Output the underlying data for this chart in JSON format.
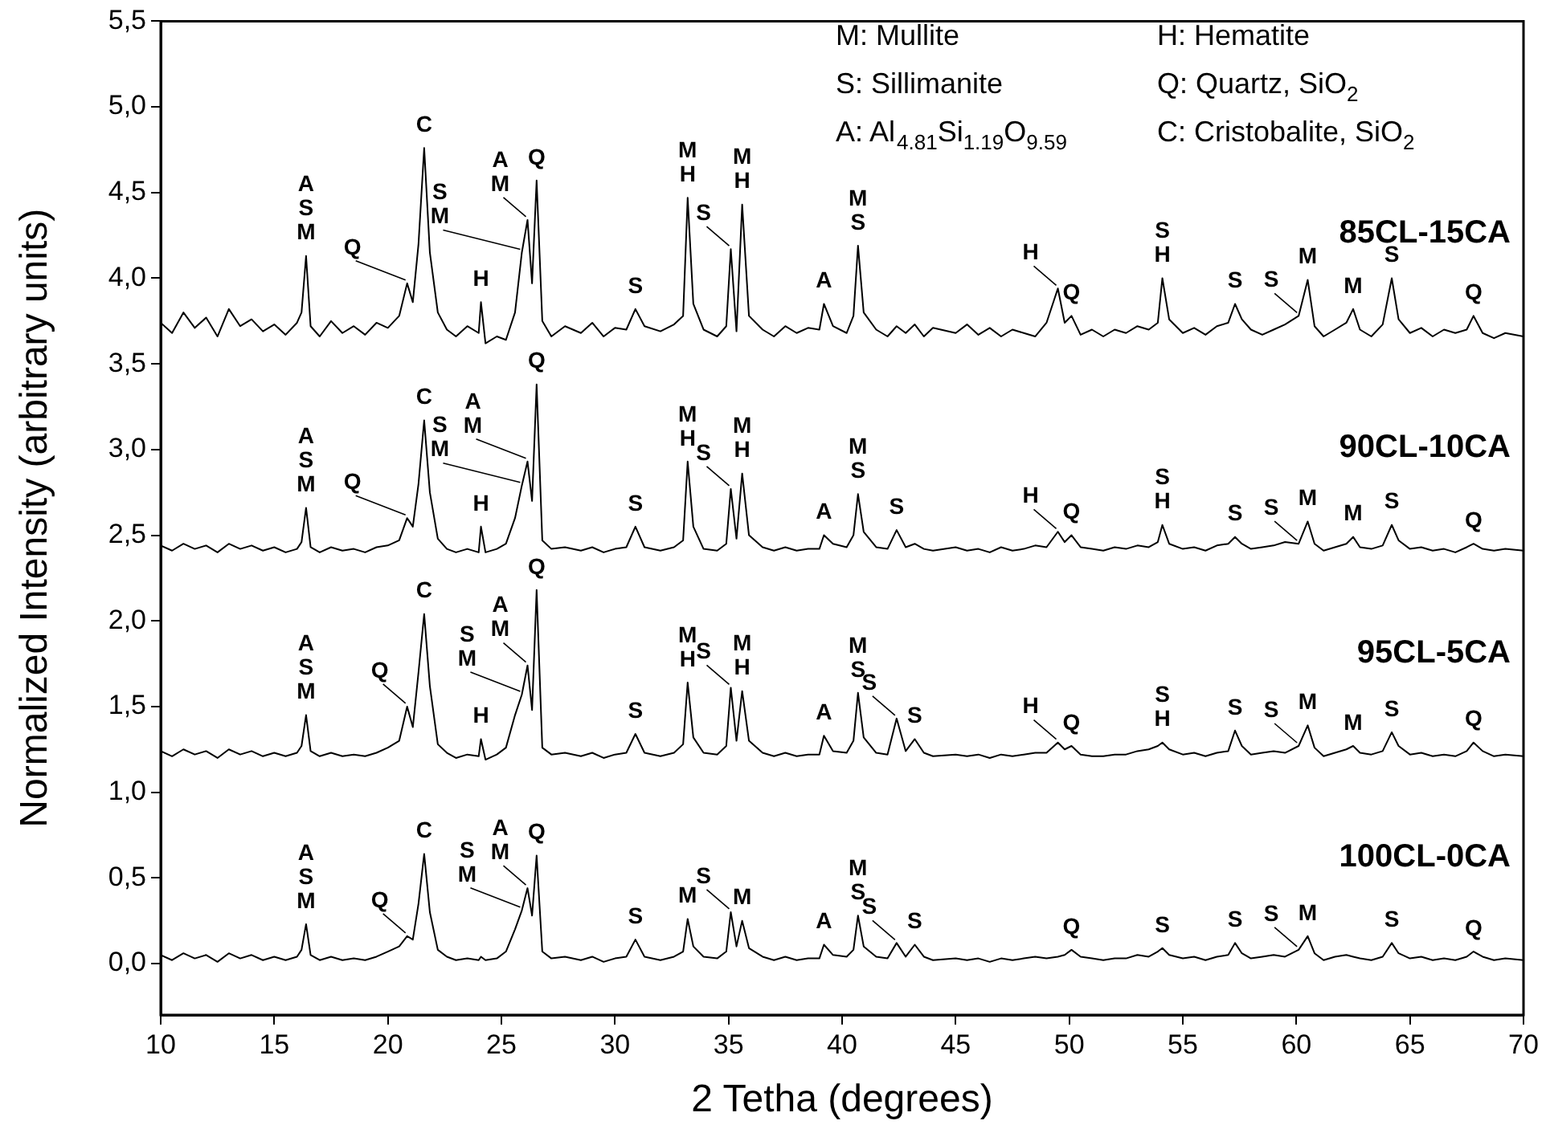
{
  "chart_data": {
    "type": "line",
    "xlabel": "2 Tetha (degrees)",
    "ylabel": "Normalized Intensity (arbitrary units)",
    "xlim": [
      10,
      70
    ],
    "xticks": [
      10,
      15,
      20,
      25,
      30,
      35,
      40,
      45,
      50,
      55,
      60,
      65,
      70
    ],
    "ylim": [
      -0.3,
      5.5
    ],
    "yticks": [
      {
        "value": 0,
        "label": "0,0"
      },
      {
        "value": 0.5,
        "label": "0,5"
      },
      {
        "value": 1,
        "label": "1,0"
      },
      {
        "value": 1.5,
        "label": "1,5"
      },
      {
        "value": 2,
        "label": "2,0"
      },
      {
        "value": 2.5,
        "label": "2,5"
      },
      {
        "value": 3,
        "label": "3,0"
      },
      {
        "value": 3.5,
        "label": "3,5"
      },
      {
        "value": 4,
        "label": "4,0"
      },
      {
        "value": 4.5,
        "label": "4,5"
      },
      {
        "value": 5,
        "label": "5,0"
      },
      {
        "value": 5.5,
        "label": "5,5"
      }
    ],
    "grid": false,
    "legend": false,
    "marker": "none",
    "line_style": "solid",
    "x": [
      10,
      10.5,
      11,
      11.5,
      12,
      12.5,
      13,
      13.5,
      14,
      14.5,
      15,
      15.5,
      16,
      16.2,
      16.4,
      16.6,
      17,
      17.5,
      18,
      18.5,
      19,
      19.5,
      20,
      20.5,
      20.85,
      21.1,
      21.35,
      21.6,
      21.85,
      22.2,
      22.6,
      23,
      23.5,
      24,
      24.1,
      24.3,
      24.8,
      25.2,
      25.6,
      25.9,
      26.15,
      26.35,
      26.55,
      26.8,
      27.2,
      27.8,
      28.5,
      29,
      29.5,
      30,
      30.5,
      30.9,
      31.3,
      32,
      32.6,
      33,
      33.2,
      33.45,
      33.9,
      34.5,
      34.9,
      35.1,
      35.35,
      35.6,
      35.9,
      36.5,
      37,
      37.5,
      38,
      38.5,
      39,
      39.2,
      39.6,
      40.2,
      40.5,
      40.7,
      40.95,
      41.5,
      42,
      42.4,
      42.8,
      43.2,
      43.6,
      44,
      45,
      45.5,
      46,
      46.5,
      47,
      47.5,
      48,
      48.5,
      49,
      49.5,
      49.8,
      50.1,
      50.5,
      51,
      51.5,
      52,
      52.5,
      53,
      53.5,
      53.9,
      54.1,
      54.4,
      55,
      55.5,
      56,
      56.5,
      57,
      57.3,
      57.6,
      58,
      58.5,
      59,
      59.5,
      60.1,
      60.5,
      60.8,
      61.2,
      61.7,
      62.2,
      62.5,
      62.8,
      63.3,
      63.8,
      64.2,
      64.5,
      65,
      65.5,
      66,
      66.5,
      67,
      67.5,
      67.8,
      68.2,
      68.7,
      69.2,
      70
    ],
    "series": [
      {
        "name": "85CL-15CA",
        "color": "#000000",
        "values": [
          3.74,
          3.68,
          3.8,
          3.71,
          3.77,
          3.66,
          3.82,
          3.72,
          3.76,
          3.69,
          3.73,
          3.67,
          3.74,
          3.8,
          4.13,
          3.72,
          3.66,
          3.75,
          3.68,
          3.72,
          3.67,
          3.74,
          3.71,
          3.78,
          3.97,
          3.86,
          4.2,
          4.76,
          4.15,
          3.8,
          3.7,
          3.66,
          3.72,
          3.68,
          3.86,
          3.62,
          3.66,
          3.64,
          3.8,
          4.15,
          4.34,
          3.97,
          4.57,
          3.75,
          3.66,
          3.72,
          3.68,
          3.74,
          3.66,
          3.71,
          3.7,
          3.82,
          3.72,
          3.69,
          3.73,
          3.78,
          4.47,
          3.85,
          3.7,
          3.66,
          3.72,
          4.17,
          3.69,
          4.43,
          3.78,
          3.7,
          3.66,
          3.72,
          3.68,
          3.71,
          3.7,
          3.85,
          3.72,
          3.68,
          3.78,
          4.19,
          3.8,
          3.7,
          3.66,
          3.72,
          3.68,
          3.73,
          3.66,
          3.71,
          3.68,
          3.73,
          3.67,
          3.71,
          3.66,
          3.7,
          3.68,
          3.66,
          3.74,
          3.94,
          3.74,
          3.78,
          3.67,
          3.7,
          3.66,
          3.7,
          3.68,
          3.72,
          3.7,
          3.74,
          4.0,
          3.76,
          3.68,
          3.71,
          3.67,
          3.72,
          3.74,
          3.85,
          3.76,
          3.7,
          3.67,
          3.7,
          3.73,
          3.78,
          3.99,
          3.72,
          3.66,
          3.7,
          3.74,
          3.82,
          3.7,
          3.66,
          3.73,
          4.0,
          3.76,
          3.68,
          3.71,
          3.66,
          3.7,
          3.68,
          3.7,
          3.78,
          3.68,
          3.65,
          3.68,
          3.66
        ]
      },
      {
        "name": "90CL-10CA",
        "color": "#000000",
        "values": [
          2.44,
          2.41,
          2.45,
          2.42,
          2.44,
          2.4,
          2.45,
          2.42,
          2.44,
          2.41,
          2.43,
          2.4,
          2.42,
          2.46,
          2.66,
          2.43,
          2.4,
          2.43,
          2.41,
          2.42,
          2.4,
          2.43,
          2.44,
          2.47,
          2.6,
          2.55,
          2.8,
          3.17,
          2.75,
          2.48,
          2.42,
          2.4,
          2.42,
          2.4,
          2.55,
          2.4,
          2.42,
          2.45,
          2.6,
          2.79,
          2.93,
          2.7,
          3.38,
          2.47,
          2.42,
          2.43,
          2.41,
          2.43,
          2.4,
          2.42,
          2.43,
          2.55,
          2.43,
          2.41,
          2.43,
          2.47,
          2.93,
          2.55,
          2.42,
          2.41,
          2.45,
          2.77,
          2.48,
          2.86,
          2.5,
          2.43,
          2.41,
          2.43,
          2.41,
          2.42,
          2.42,
          2.5,
          2.45,
          2.43,
          2.5,
          2.74,
          2.52,
          2.43,
          2.42,
          2.53,
          2.43,
          2.45,
          2.42,
          2.41,
          2.43,
          2.41,
          2.42,
          2.4,
          2.43,
          2.41,
          2.42,
          2.44,
          2.43,
          2.52,
          2.46,
          2.5,
          2.43,
          2.42,
          2.41,
          2.43,
          2.42,
          2.44,
          2.43,
          2.46,
          2.56,
          2.45,
          2.42,
          2.43,
          2.41,
          2.44,
          2.45,
          2.49,
          2.45,
          2.42,
          2.43,
          2.44,
          2.46,
          2.45,
          2.58,
          2.45,
          2.41,
          2.43,
          2.45,
          2.49,
          2.43,
          2.42,
          2.44,
          2.56,
          2.47,
          2.42,
          2.43,
          2.41,
          2.42,
          2.4,
          2.43,
          2.45,
          2.42,
          2.41,
          2.42,
          2.41
        ]
      },
      {
        "name": "95CL-5CA",
        "color": "#000000",
        "values": [
          1.24,
          1.21,
          1.25,
          1.22,
          1.24,
          1.2,
          1.25,
          1.22,
          1.24,
          1.21,
          1.23,
          1.21,
          1.23,
          1.27,
          1.45,
          1.24,
          1.21,
          1.23,
          1.21,
          1.22,
          1.21,
          1.23,
          1.26,
          1.3,
          1.5,
          1.38,
          1.7,
          2.04,
          1.62,
          1.28,
          1.23,
          1.2,
          1.22,
          1.21,
          1.31,
          1.19,
          1.22,
          1.26,
          1.45,
          1.57,
          1.74,
          1.48,
          2.18,
          1.26,
          1.22,
          1.23,
          1.21,
          1.23,
          1.2,
          1.22,
          1.23,
          1.34,
          1.23,
          1.21,
          1.23,
          1.28,
          1.64,
          1.32,
          1.23,
          1.22,
          1.27,
          1.61,
          1.3,
          1.59,
          1.3,
          1.23,
          1.21,
          1.23,
          1.21,
          1.22,
          1.22,
          1.33,
          1.24,
          1.23,
          1.3,
          1.58,
          1.32,
          1.23,
          1.22,
          1.43,
          1.24,
          1.31,
          1.23,
          1.21,
          1.22,
          1.21,
          1.22,
          1.2,
          1.22,
          1.21,
          1.22,
          1.23,
          1.23,
          1.29,
          1.25,
          1.27,
          1.22,
          1.21,
          1.21,
          1.22,
          1.22,
          1.24,
          1.25,
          1.27,
          1.29,
          1.25,
          1.22,
          1.23,
          1.21,
          1.23,
          1.24,
          1.36,
          1.27,
          1.22,
          1.23,
          1.24,
          1.23,
          1.27,
          1.39,
          1.26,
          1.21,
          1.23,
          1.25,
          1.27,
          1.23,
          1.22,
          1.24,
          1.35,
          1.27,
          1.22,
          1.23,
          1.21,
          1.22,
          1.21,
          1.24,
          1.29,
          1.24,
          1.21,
          1.22,
          1.21
        ]
      },
      {
        "name": "100CL-0CA",
        "color": "#000000",
        "values": [
          0.05,
          0.02,
          0.06,
          0.03,
          0.05,
          0.01,
          0.06,
          0.03,
          0.05,
          0.02,
          0.04,
          0.02,
          0.04,
          0.08,
          0.23,
          0.05,
          0.02,
          0.04,
          0.02,
          0.03,
          0.02,
          0.04,
          0.07,
          0.1,
          0.16,
          0.14,
          0.35,
          0.64,
          0.3,
          0.08,
          0.04,
          0.02,
          0.03,
          0.02,
          0.04,
          0.02,
          0.03,
          0.07,
          0.2,
          0.31,
          0.44,
          0.28,
          0.63,
          0.07,
          0.03,
          0.04,
          0.02,
          0.04,
          0.01,
          0.03,
          0.04,
          0.14,
          0.04,
          0.02,
          0.04,
          0.07,
          0.26,
          0.1,
          0.04,
          0.03,
          0.07,
          0.3,
          0.1,
          0.25,
          0.09,
          0.04,
          0.02,
          0.04,
          0.02,
          0.03,
          0.03,
          0.11,
          0.05,
          0.04,
          0.08,
          0.28,
          0.1,
          0.04,
          0.03,
          0.12,
          0.04,
          0.11,
          0.04,
          0.02,
          0.03,
          0.02,
          0.03,
          0.01,
          0.03,
          0.02,
          0.03,
          0.04,
          0.03,
          0.04,
          0.05,
          0.08,
          0.04,
          0.03,
          0.02,
          0.03,
          0.03,
          0.05,
          0.04,
          0.07,
          0.09,
          0.05,
          0.03,
          0.04,
          0.02,
          0.04,
          0.05,
          0.12,
          0.06,
          0.03,
          0.04,
          0.05,
          0.04,
          0.08,
          0.16,
          0.06,
          0.02,
          0.04,
          0.05,
          0.04,
          0.03,
          0.02,
          0.04,
          0.12,
          0.06,
          0.03,
          0.04,
          0.02,
          0.03,
          0.02,
          0.04,
          0.07,
          0.04,
          0.02,
          0.03,
          0.02
        ]
      }
    ],
    "annotations": [
      "M: Mullite",
      "S: Sillimanite",
      "A: Al$_{4.81}$Si$_{1.19}$O$_{9.59}$",
      "H: Hematite",
      "Q: Quartz, SiO$_{2}$",
      "C: Cristobalite, SiO$_{2}$",
      {
        "text": "M",
        "x": 16.4,
        "y": 4.13
      },
      {
        "text": "S",
        "x": 16.4,
        "y": 4.13
      },
      {
        "text": "A",
        "x": 16.4,
        "y": 4.13
      },
      {
        "text": "Q",
        "x": 20.85,
        "y": 3.97
      },
      {
        "text": "C",
        "x": 21.6,
        "y": 4.76
      },
      {
        "text": "H",
        "x": 24.1,
        "y": 3.86
      },
      {
        "text": "M",
        "x": 25.9,
        "y": 4.15
      },
      {
        "text": "S",
        "x": 25.9,
        "y": 4.15
      },
      {
        "text": "M",
        "x": 26.15,
        "y": 4.34
      },
      {
        "text": "A",
        "x": 26.15,
        "y": 4.34
      },
      {
        "text": "Q",
        "x": 26.55,
        "y": 4.57
      },
      {
        "text": "S",
        "x": 30.9,
        "y": 3.82
      },
      {
        "text": "H",
        "x": 33.2,
        "y": 4.47
      },
      {
        "text": "M",
        "x": 33.2,
        "y": 4.47
      },
      {
        "text": "S",
        "x": 35.1,
        "y": 4.17
      },
      {
        "text": "H",
        "x": 35.6,
        "y": 4.43
      },
      {
        "text": "M",
        "x": 35.6,
        "y": 4.43
      },
      {
        "text": "A",
        "x": 39.2,
        "y": 3.85
      },
      {
        "text": "S",
        "x": 40.7,
        "y": 4.19
      },
      {
        "text": "M",
        "x": 40.7,
        "y": 4.19
      },
      {
        "text": "H",
        "x": 49.5,
        "y": 3.94
      },
      {
        "text": "Q",
        "x": 50.1,
        "y": 3.78
      },
      {
        "text": "H",
        "x": 54.1,
        "y": 4.0
      },
      {
        "text": "S",
        "x": 54.1,
        "y": 4.0
      },
      {
        "text": "S",
        "x": 57.3,
        "y": 3.85
      },
      {
        "text": "S",
        "x": 60.1,
        "y": 3.78
      },
      {
        "text": "M",
        "x": 60.5,
        "y": 3.99
      },
      {
        "text": "M",
        "x": 62.5,
        "y": 3.82
      },
      {
        "text": "S",
        "x": 64.2,
        "y": 4.0
      },
      {
        "text": "Q",
        "x": 67.8,
        "y": 3.78
      },
      {
        "text": "M",
        "x": 16.4,
        "y": 2.66
      },
      {
        "text": "S",
        "x": 16.4,
        "y": 2.66
      },
      {
        "text": "A",
        "x": 16.4,
        "y": 2.66
      },
      {
        "text": "Q",
        "x": 20.85,
        "y": 2.6
      },
      {
        "text": "C",
        "x": 21.6,
        "y": 3.17
      },
      {
        "text": "H",
        "x": 24.1,
        "y": 2.55
      },
      {
        "text": "M",
        "x": 25.9,
        "y": 2.79
      },
      {
        "text": "S",
        "x": 25.9,
        "y": 2.79
      },
      {
        "text": "M",
        "x": 26.15,
        "y": 2.93
      },
      {
        "text": "A",
        "x": 26.15,
        "y": 2.93
      },
      {
        "text": "Q",
        "x": 26.55,
        "y": 3.38
      },
      {
        "text": "S",
        "x": 30.9,
        "y": 2.55
      },
      {
        "text": "H",
        "x": 33.2,
        "y": 2.93
      },
      {
        "text": "M",
        "x": 33.2,
        "y": 2.93
      },
      {
        "text": "S",
        "x": 35.1,
        "y": 2.77
      },
      {
        "text": "H",
        "x": 35.6,
        "y": 2.86
      },
      {
        "text": "M",
        "x": 35.6,
        "y": 2.86
      },
      {
        "text": "A",
        "x": 39.2,
        "y": 2.5
      },
      {
        "text": "S",
        "x": 40.7,
        "y": 2.74
      },
      {
        "text": "M",
        "x": 40.7,
        "y": 2.74
      },
      {
        "text": "S",
        "x": 42.4,
        "y": 2.53
      },
      {
        "text": "H",
        "x": 49.5,
        "y": 2.52
      },
      {
        "text": "Q",
        "x": 50.1,
        "y": 2.5
      },
      {
        "text": "H",
        "x": 54.1,
        "y": 2.56
      },
      {
        "text": "S",
        "x": 54.1,
        "y": 2.56
      },
      {
        "text": "S",
        "x": 57.3,
        "y": 2.49
      },
      {
        "text": "S",
        "x": 60.1,
        "y": 2.45
      },
      {
        "text": "M",
        "x": 60.5,
        "y": 2.58
      },
      {
        "text": "M",
        "x": 62.5,
        "y": 2.49
      },
      {
        "text": "S",
        "x": 64.2,
        "y": 2.56
      },
      {
        "text": "Q",
        "x": 67.8,
        "y": 2.45
      },
      {
        "text": "M",
        "x": 16.4,
        "y": 1.45
      },
      {
        "text": "S",
        "x": 16.4,
        "y": 1.45
      },
      {
        "text": "A",
        "x": 16.4,
        "y": 1.45
      },
      {
        "text": "Q",
        "x": 20.85,
        "y": 1.5
      },
      {
        "text": "C",
        "x": 21.6,
        "y": 2.04
      },
      {
        "text": "H",
        "x": 24.1,
        "y": 1.31
      },
      {
        "text": "M",
        "x": 25.9,
        "y": 1.57
      },
      {
        "text": "S",
        "x": 25.9,
        "y": 1.57
      },
      {
        "text": "M",
        "x": 26.15,
        "y": 1.74
      },
      {
        "text": "A",
        "x": 26.15,
        "y": 1.74
      },
      {
        "text": "Q",
        "x": 26.55,
        "y": 2.18
      },
      {
        "text": "S",
        "x": 30.9,
        "y": 1.34
      },
      {
        "text": "H",
        "x": 33.2,
        "y": 1.64
      },
      {
        "text": "M",
        "x": 33.2,
        "y": 1.64
      },
      {
        "text": "S",
        "x": 35.1,
        "y": 1.61
      },
      {
        "text": "H",
        "x": 35.6,
        "y": 1.59
      },
      {
        "text": "M",
        "x": 35.6,
        "y": 1.59
      },
      {
        "text": "A",
        "x": 39.2,
        "y": 1.33
      },
      {
        "text": "S",
        "x": 40.7,
        "y": 1.58
      },
      {
        "text": "M",
        "x": 40.7,
        "y": 1.58
      },
      {
        "text": "S",
        "x": 42.4,
        "y": 1.43
      },
      {
        "text": "S",
        "x": 43.2,
        "y": 1.31
      },
      {
        "text": "H",
        "x": 49.5,
        "y": 1.29
      },
      {
        "text": "Q",
        "x": 50.1,
        "y": 1.27
      },
      {
        "text": "H",
        "x": 54.1,
        "y": 1.29
      },
      {
        "text": "S",
        "x": 54.1,
        "y": 1.29
      },
      {
        "text": "S",
        "x": 57.3,
        "y": 1.36
      },
      {
        "text": "S",
        "x": 60.1,
        "y": 1.27
      },
      {
        "text": "M",
        "x": 60.5,
        "y": 1.39
      },
      {
        "text": "M",
        "x": 62.5,
        "y": 1.27
      },
      {
        "text": "S",
        "x": 64.2,
        "y": 1.35
      },
      {
        "text": "Q",
        "x": 67.8,
        "y": 1.29
      },
      {
        "text": "M",
        "x": 16.4,
        "y": 0.23
      },
      {
        "text": "S",
        "x": 16.4,
        "y": 0.23
      },
      {
        "text": "A",
        "x": 16.4,
        "y": 0.23
      },
      {
        "text": "Q",
        "x": 20.85,
        "y": 0.16
      },
      {
        "text": "C",
        "x": 21.6,
        "y": 0.64
      },
      {
        "text": "M",
        "x": 25.9,
        "y": 0.31
      },
      {
        "text": "S",
        "x": 25.9,
        "y": 0.31
      },
      {
        "text": "M",
        "x": 26.15,
        "y": 0.44
      },
      {
        "text": "A",
        "x": 26.15,
        "y": 0.44
      },
      {
        "text": "Q",
        "x": 26.55,
        "y": 0.63
      },
      {
        "text": "S",
        "x": 30.9,
        "y": 0.14
      },
      {
        "text": "M",
        "x": 33.2,
        "y": 0.26
      },
      {
        "text": "S",
        "x": 35.1,
        "y": 0.3
      },
      {
        "text": "M",
        "x": 35.6,
        "y": 0.25
      },
      {
        "text": "A",
        "x": 39.2,
        "y": 0.11
      },
      {
        "text": "S",
        "x": 40.7,
        "y": 0.28
      },
      {
        "text": "M",
        "x": 40.7,
        "y": 0.28
      },
      {
        "text": "S",
        "x": 42.4,
        "y": 0.12
      },
      {
        "text": "S",
        "x": 43.2,
        "y": 0.11
      },
      {
        "text": "Q",
        "x": 50.1,
        "y": 0.08
      },
      {
        "text": "S",
        "x": 54.1,
        "y": 0.09
      },
      {
        "text": "S",
        "x": 57.3,
        "y": 0.12
      },
      {
        "text": "S",
        "x": 60.1,
        "y": 0.08
      },
      {
        "text": "M",
        "x": 60.5,
        "y": 0.16
      },
      {
        "text": "S",
        "x": 64.2,
        "y": 0.12
      },
      {
        "text": "Q",
        "x": 67.8,
        "y": 0.07
      }
    ]
  }
}
